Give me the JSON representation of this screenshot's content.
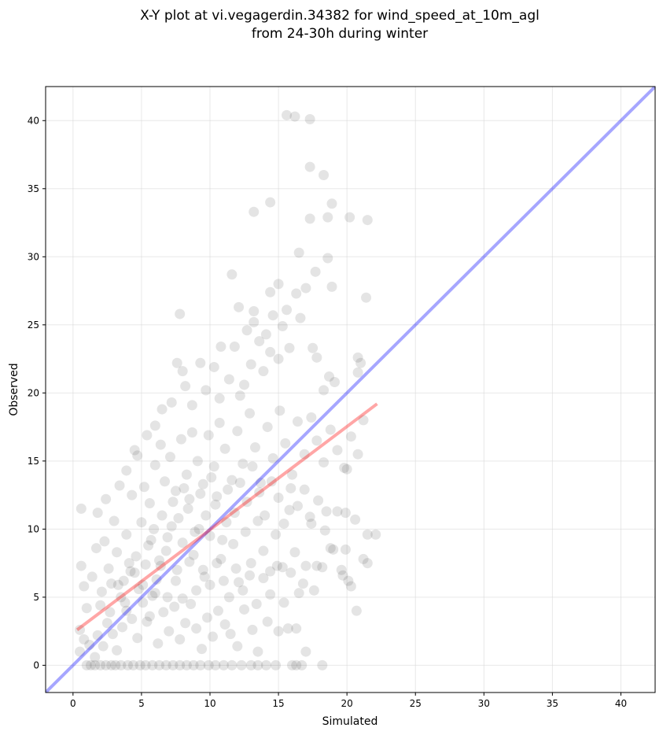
{
  "chart_data": {
    "type": "scatter",
    "title": "X-Y plot at vi.vegagerdin.34382 for wind_speed_at_10m_agl",
    "subtitle": "from 24-30h during winter",
    "xlabel": "Simulated",
    "ylabel": "Observed",
    "xlim": [
      -2,
      42.5
    ],
    "ylim": [
      -2,
      42.5
    ],
    "xticks": [
      0,
      5,
      10,
      15,
      20,
      25,
      30,
      35,
      40
    ],
    "yticks": [
      0,
      5,
      10,
      15,
      20,
      25,
      30,
      35,
      40
    ],
    "grid": true,
    "colors": {
      "points": "#404040",
      "identity_line": "#0000ff",
      "fit_line": "#ff0000",
      "grid": "#d9d9d9"
    },
    "identity_line": {
      "x": [
        -2,
        42.5
      ],
      "y": [
        -2,
        42.5
      ]
    },
    "fit_line": {
      "x": [
        0.3,
        22.2
      ],
      "y": [
        2.6,
        19.2
      ]
    },
    "series": [
      {
        "points": [
          [
            1.0,
            0.0
          ],
          [
            1.3,
            0.0
          ],
          [
            1.6,
            0.0
          ],
          [
            2.0,
            0.0
          ],
          [
            2.4,
            0.0
          ],
          [
            2.8,
            0.0
          ],
          [
            3.1,
            0.0
          ],
          [
            3.5,
            0.0
          ],
          [
            4.0,
            0.0
          ],
          [
            4.4,
            0.0
          ],
          [
            4.9,
            0.0
          ],
          [
            5.3,
            0.0
          ],
          [
            5.8,
            0.0
          ],
          [
            6.3,
            0.0
          ],
          [
            6.8,
            0.0
          ],
          [
            7.3,
            0.0
          ],
          [
            7.8,
            0.0
          ],
          [
            8.3,
            0.0
          ],
          [
            8.8,
            0.0
          ],
          [
            9.3,
            0.0
          ],
          [
            9.9,
            0.0
          ],
          [
            10.4,
            0.0
          ],
          [
            11.0,
            0.0
          ],
          [
            11.6,
            0.0
          ],
          [
            12.3,
            0.0
          ],
          [
            13.0,
            0.0
          ],
          [
            13.5,
            0.0
          ],
          [
            14.1,
            0.0
          ],
          [
            14.8,
            0.0
          ],
          [
            16.3,
            0.0
          ],
          [
            16.7,
            0.0
          ],
          [
            18.2,
            0.0
          ],
          [
            16.0,
            0.0
          ],
          [
            0.5,
            1.0
          ],
          [
            0.8,
            1.9
          ],
          [
            0.5,
            2.6
          ],
          [
            1.2,
            1.5
          ],
          [
            1.6,
            0.6
          ],
          [
            1.8,
            2.2
          ],
          [
            2.2,
            1.4
          ],
          [
            2.5,
            3.1
          ],
          [
            2.9,
            2.3
          ],
          [
            3.2,
            1.1
          ],
          [
            3.6,
            2.8
          ],
          [
            3.9,
            4.0
          ],
          [
            4.3,
            3.4
          ],
          [
            4.7,
            2.0
          ],
          [
            5.1,
            4.6
          ],
          [
            5.4,
            3.2
          ],
          [
            5.8,
            5.1
          ],
          [
            6.2,
            1.6
          ],
          [
            6.6,
            3.9
          ],
          [
            7.0,
            2.5
          ],
          [
            7.4,
            4.3
          ],
          [
            7.8,
            1.9
          ],
          [
            8.2,
            3.1
          ],
          [
            8.6,
            4.5
          ],
          [
            9.0,
            2.7
          ],
          [
            9.4,
            1.2
          ],
          [
            9.8,
            3.5
          ],
          [
            10.2,
            2.1
          ],
          [
            10.6,
            4.0
          ],
          [
            11.1,
            3.0
          ],
          [
            11.5,
            2.3
          ],
          [
            12.0,
            1.4
          ],
          [
            12.5,
            4.1
          ],
          [
            13.1,
            2.6
          ],
          [
            13.5,
            1.0
          ],
          [
            14.2,
            3.2
          ],
          [
            15.0,
            2.5
          ],
          [
            15.7,
            2.7
          ],
          [
            16.3,
            2.7
          ],
          [
            17.0,
            1.0
          ],
          [
            0.8,
            5.8
          ],
          [
            0.6,
            7.3
          ],
          [
            1.0,
            4.2
          ],
          [
            1.4,
            6.5
          ],
          [
            1.7,
            8.6
          ],
          [
            2.1,
            5.4
          ],
          [
            2.6,
            7.1
          ],
          [
            2.3,
            9.1
          ],
          [
            2.8,
            6.0
          ],
          [
            3.2,
            8.3
          ],
          [
            3.5,
            5.0
          ],
          [
            3.9,
            9.6
          ],
          [
            4.2,
            6.9
          ],
          [
            4.6,
            8.0
          ],
          [
            5.0,
            10.5
          ],
          [
            5.3,
            7.4
          ],
          [
            5.7,
            9.2
          ],
          [
            6.1,
            6.3
          ],
          [
            6.5,
            11.0
          ],
          [
            6.8,
            8.4
          ],
          [
            7.2,
            10.2
          ],
          [
            7.6,
            7.0
          ],
          [
            8.0,
            9.0
          ],
          [
            8.4,
            11.5
          ],
          [
            8.8,
            8.1
          ],
          [
            9.2,
            10.0
          ],
          [
            9.6,
            6.5
          ],
          [
            10.0,
            9.5
          ],
          [
            10.4,
            11.8
          ],
          [
            10.8,
            7.8
          ],
          [
            11.2,
            10.5
          ],
          [
            11.7,
            8.9
          ],
          [
            12.1,
            6.1
          ],
          [
            12.6,
            9.8
          ],
          [
            13.0,
            7.5
          ],
          [
            13.5,
            10.6
          ],
          [
            13.9,
            8.4
          ],
          [
            14.4,
            6.9
          ],
          [
            14.8,
            9.6
          ],
          [
            15.3,
            7.2
          ],
          [
            15.8,
            11.4
          ],
          [
            16.2,
            8.3
          ],
          [
            16.8,
            6.0
          ],
          [
            17.3,
            10.9
          ],
          [
            17.8,
            7.3
          ],
          [
            18.4,
            9.9
          ],
          [
            19.0,
            8.5
          ],
          [
            19.6,
            7.0
          ],
          [
            20.1,
            6.2
          ],
          [
            20.6,
            10.7
          ],
          [
            21.2,
            7.8
          ],
          [
            21.5,
            9.6
          ],
          [
            22.1,
            9.6
          ],
          [
            20.3,
            5.8
          ],
          [
            20.7,
            4.0
          ],
          [
            21.5,
            7.5
          ],
          [
            0.6,
            11.5
          ],
          [
            1.8,
            11.2
          ],
          [
            2.4,
            12.2
          ],
          [
            3.0,
            10.6
          ],
          [
            3.4,
            13.2
          ],
          [
            3.9,
            14.3
          ],
          [
            4.3,
            12.5
          ],
          [
            4.7,
            15.4
          ],
          [
            5.2,
            13.1
          ],
          [
            5.6,
            11.9
          ],
          [
            6.0,
            14.7
          ],
          [
            6.4,
            16.2
          ],
          [
            6.7,
            13.5
          ],
          [
            7.1,
            15.3
          ],
          [
            7.5,
            12.8
          ],
          [
            7.9,
            16.6
          ],
          [
            8.3,
            14.0
          ],
          [
            8.7,
            17.1
          ],
          [
            9.1,
            15.0
          ],
          [
            9.5,
            13.3
          ],
          [
            9.9,
            16.9
          ],
          [
            10.3,
            14.6
          ],
          [
            10.7,
            17.8
          ],
          [
            11.1,
            15.9
          ],
          [
            11.6,
            13.6
          ],
          [
            12.0,
            17.2
          ],
          [
            12.4,
            14.8
          ],
          [
            12.9,
            18.5
          ],
          [
            13.3,
            16.0
          ],
          [
            13.7,
            13.4
          ],
          [
            14.2,
            17.5
          ],
          [
            14.6,
            15.2
          ],
          [
            15.1,
            18.7
          ],
          [
            15.5,
            16.3
          ],
          [
            16.0,
            14.0
          ],
          [
            16.4,
            17.9
          ],
          [
            16.9,
            15.5
          ],
          [
            17.4,
            18.2
          ],
          [
            17.8,
            16.5
          ],
          [
            18.3,
            14.9
          ],
          [
            18.8,
            17.3
          ],
          [
            19.3,
            15.8
          ],
          [
            19.8,
            14.5
          ],
          [
            20.3,
            16.8
          ],
          [
            20.8,
            15.5
          ],
          [
            21.2,
            18.0
          ],
          [
            20.0,
            14.4
          ],
          [
            19.1,
            20.8
          ],
          [
            4.5,
            15.8
          ],
          [
            5.4,
            16.9
          ],
          [
            6.0,
            17.6
          ],
          [
            6.5,
            18.8
          ],
          [
            7.2,
            19.3
          ],
          [
            7.6,
            22.2
          ],
          [
            8.0,
            21.6
          ],
          [
            8.2,
            20.5
          ],
          [
            8.7,
            19.1
          ],
          [
            9.3,
            22.2
          ],
          [
            9.7,
            20.2
          ],
          [
            10.3,
            21.9
          ],
          [
            10.7,
            19.6
          ],
          [
            10.8,
            23.4
          ],
          [
            11.4,
            21.0
          ],
          [
            11.8,
            23.4
          ],
          [
            12.2,
            19.8
          ],
          [
            12.5,
            20.6
          ],
          [
            12.7,
            24.6
          ],
          [
            13.0,
            22.1
          ],
          [
            13.2,
            25.2
          ],
          [
            13.6,
            23.8
          ],
          [
            13.9,
            21.6
          ],
          [
            14.1,
            24.3
          ],
          [
            14.4,
            23.0
          ],
          [
            14.6,
            25.7
          ],
          [
            15.0,
            22.5
          ],
          [
            15.3,
            24.9
          ],
          [
            15.6,
            26.1
          ],
          [
            15.8,
            23.3
          ],
          [
            16.3,
            27.3
          ],
          [
            16.6,
            25.5
          ],
          [
            17.0,
            27.7
          ],
          [
            17.5,
            23.3
          ],
          [
            17.8,
            22.6
          ],
          [
            18.3,
            20.2
          ],
          [
            18.7,
            21.2
          ],
          [
            20.8,
            22.6
          ],
          [
            20.8,
            21.5
          ],
          [
            21.0,
            22.2
          ],
          [
            14.4,
            27.4
          ],
          [
            15.0,
            28.0
          ],
          [
            11.6,
            28.7
          ],
          [
            12.1,
            26.3
          ],
          [
            13.2,
            26.0
          ],
          [
            7.8,
            25.8
          ],
          [
            16.5,
            30.3
          ],
          [
            17.7,
            28.9
          ],
          [
            18.6,
            29.9
          ],
          [
            18.9,
            27.8
          ],
          [
            21.4,
            27.0
          ],
          [
            13.2,
            33.3
          ],
          [
            14.4,
            34.0
          ],
          [
            17.3,
            32.8
          ],
          [
            18.6,
            32.9
          ],
          [
            20.2,
            32.9
          ],
          [
            21.5,
            32.7
          ],
          [
            18.9,
            33.9
          ],
          [
            17.3,
            36.6
          ],
          [
            18.3,
            36.0
          ],
          [
            15.6,
            40.4
          ],
          [
            16.2,
            40.3
          ],
          [
            17.3,
            40.1
          ],
          [
            3.7,
            6.2
          ],
          [
            4.1,
            7.5
          ],
          [
            4.8,
            5.6
          ],
          [
            5.5,
            8.8
          ],
          [
            5.9,
            10.0
          ],
          [
            6.3,
            7.7
          ],
          [
            6.9,
            9.4
          ],
          [
            7.3,
            12.0
          ],
          [
            7.7,
            10.8
          ],
          [
            8.1,
            13.0
          ],
          [
            8.5,
            12.2
          ],
          [
            8.9,
            9.8
          ],
          [
            9.3,
            12.6
          ],
          [
            9.7,
            11.0
          ],
          [
            10.1,
            13.8
          ],
          [
            10.5,
            12.4
          ],
          [
            10.9,
            9.2
          ],
          [
            11.3,
            12.9
          ],
          [
            11.8,
            11.2
          ],
          [
            12.2,
            13.4
          ],
          [
            12.7,
            12.0
          ],
          [
            13.1,
            14.6
          ],
          [
            13.6,
            12.7
          ],
          [
            14.0,
            11.0
          ],
          [
            14.5,
            13.5
          ],
          [
            15.0,
            12.3
          ],
          [
            15.4,
            10.4
          ],
          [
            15.9,
            13.0
          ],
          [
            16.4,
            11.7
          ],
          [
            16.9,
            12.9
          ],
          [
            17.4,
            10.4
          ],
          [
            17.9,
            12.1
          ],
          [
            18.5,
            11.3
          ],
          [
            19.3,
            11.3
          ],
          [
            19.9,
            11.2
          ],
          [
            2.0,
            4.4
          ],
          [
            2.7,
            3.9
          ],
          [
            3.3,
            5.9
          ],
          [
            3.8,
            4.6
          ],
          [
            4.5,
            6.8
          ],
          [
            5.1,
            5.9
          ],
          [
            5.6,
            3.6
          ],
          [
            6.0,
            5.3
          ],
          [
            6.4,
            7.3
          ],
          [
            6.9,
            5.0
          ],
          [
            7.5,
            6.2
          ],
          [
            8.0,
            4.9
          ],
          [
            8.5,
            7.6
          ],
          [
            9.0,
            5.5
          ],
          [
            9.5,
            7.0
          ],
          [
            10.0,
            5.9
          ],
          [
            10.5,
            7.5
          ],
          [
            11.0,
            6.2
          ],
          [
            11.4,
            5.0
          ],
          [
            11.9,
            7.1
          ],
          [
            12.4,
            5.5
          ],
          [
            12.9,
            6.6
          ],
          [
            13.4,
            4.5
          ],
          [
            13.9,
            6.4
          ],
          [
            14.4,
            5.2
          ],
          [
            14.9,
            7.3
          ],
          [
            15.4,
            4.6
          ],
          [
            15.9,
            6.8
          ],
          [
            16.5,
            5.3
          ],
          [
            17.0,
            7.3
          ],
          [
            17.6,
            5.5
          ],
          [
            18.2,
            7.2
          ],
          [
            18.8,
            8.6
          ],
          [
            19.7,
            6.6
          ],
          [
            19.9,
            8.5
          ]
        ]
      }
    ]
  }
}
